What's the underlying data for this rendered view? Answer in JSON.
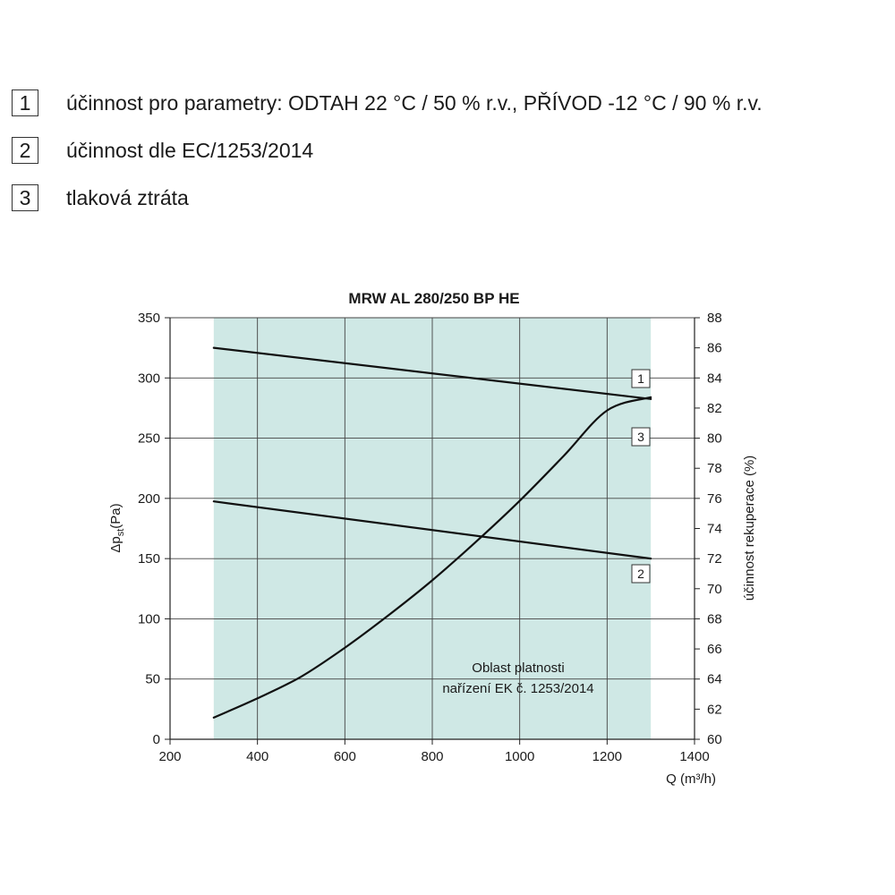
{
  "legend": [
    {
      "number": "1",
      "label": "účinnost pro parametry: ODTAH 22 °C / 50 % r.v., PŘÍVOD -12 °C / 90 % r.v."
    },
    {
      "number": "2",
      "label": "účinnost dle EC/1253/2014"
    },
    {
      "number": "3",
      "label": "tlaková ztráta"
    }
  ],
  "chart_data": {
    "type": "line",
    "title": "MRW AL 280/250 BP HE",
    "xlabel": "Q (m³/h)",
    "ylabel_left": "Δp",
    "ylabel_left_sub": "st",
    "ylabel_left_unit": "(Pa)",
    "ylabel_right": "účinnost rekuperace (%)",
    "xlim": [
      200,
      1400
    ],
    "ylim_left": [
      0,
      350
    ],
    "ylim_right": [
      60,
      88
    ],
    "x_ticks": [
      200,
      400,
      600,
      800,
      1000,
      1200,
      1400
    ],
    "y_left_ticks": [
      0,
      50,
      100,
      150,
      200,
      250,
      300,
      350
    ],
    "y_right_ticks": [
      60,
      62,
      64,
      66,
      68,
      70,
      72,
      74,
      76,
      78,
      80,
      82,
      84,
      86,
      88
    ],
    "grid": true,
    "validity_region": {
      "x_range": [
        300,
        1300
      ],
      "label_line1": "Oblast platnosti",
      "label_line2": "nařízení EK č. 1253/2014",
      "color": "#cfe8e5"
    },
    "series": [
      {
        "name": "1",
        "axis": "right",
        "x": [
          300,
          1300
        ],
        "y": [
          86.0,
          82.6
        ]
      },
      {
        "name": "2",
        "axis": "right",
        "x": [
          300,
          1300
        ],
        "y": [
          75.8,
          72.0
        ]
      },
      {
        "name": "3",
        "axis": "left",
        "x": [
          300,
          400,
          500,
          600,
          700,
          800,
          900,
          1000,
          1100,
          1200,
          1300
        ],
        "y": [
          18,
          34,
          52,
          76,
          103,
          132,
          164,
          198,
          235,
          273,
          284
        ]
      }
    ]
  }
}
